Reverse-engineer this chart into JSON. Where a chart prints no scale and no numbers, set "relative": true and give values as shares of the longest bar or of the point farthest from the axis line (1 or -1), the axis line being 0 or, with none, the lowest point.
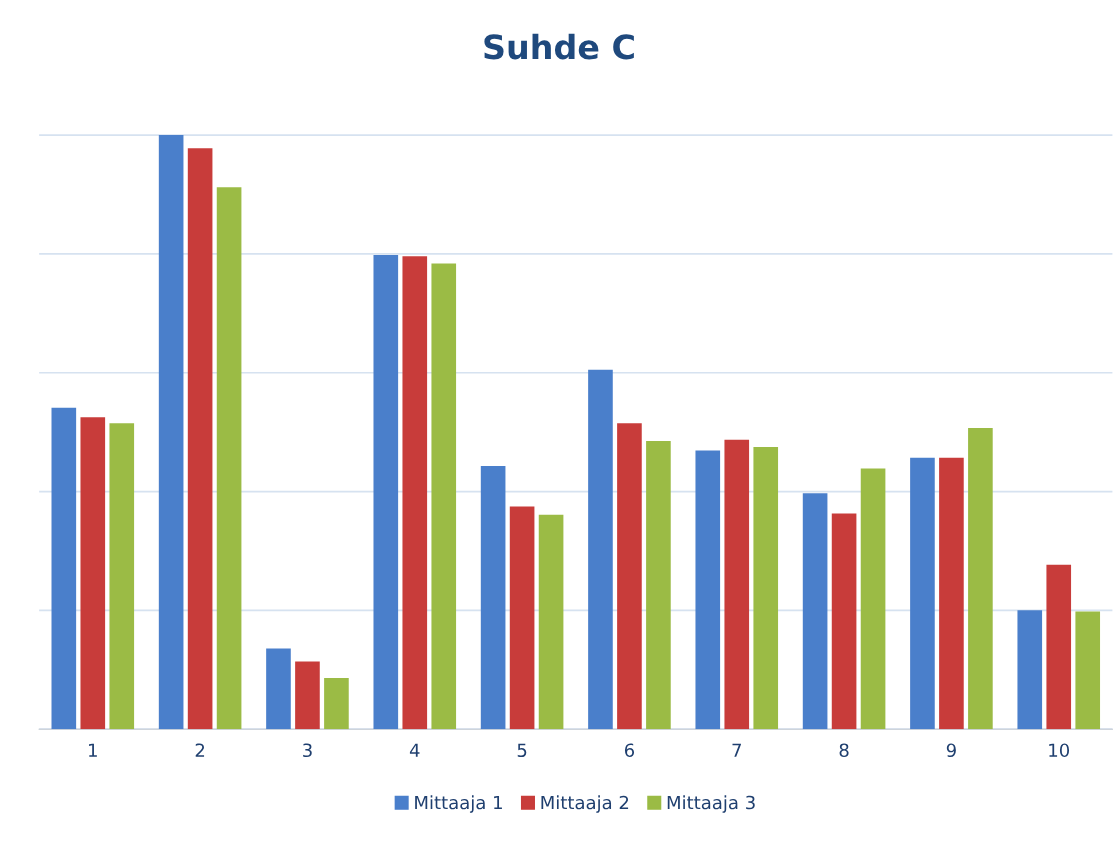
{
  "chart_data": {
    "type": "bar",
    "title": "Suhde C",
    "relative": true,
    "grid": "y",
    "legend": "bottom",
    "categories": [
      "1",
      "2",
      "3",
      "4",
      "5",
      "6",
      "7",
      "8",
      "9",
      "10"
    ],
    "series": [
      {
        "name": "Mittaaja 1",
        "color": "#4a7fcb",
        "values": [
          0.541,
          1,
          0.136,
          0.798,
          0.443,
          0.605,
          0.469,
          0.397,
          0.457,
          0.2
        ]
      },
      {
        "name": "Mittaaja 2",
        "color": "#c83c3a",
        "values": [
          0.525,
          0.978,
          0.114,
          0.796,
          0.375,
          0.515,
          0.487,
          0.363,
          0.457,
          0.277
        ]
      },
      {
        "name": "Mittaaja 3",
        "color": "#9bbb45",
        "values": [
          0.515,
          0.912,
          0.086,
          0.784,
          0.361,
          0.485,
          0.475,
          0.439,
          0.507,
          0.198
        ]
      }
    ]
  }
}
